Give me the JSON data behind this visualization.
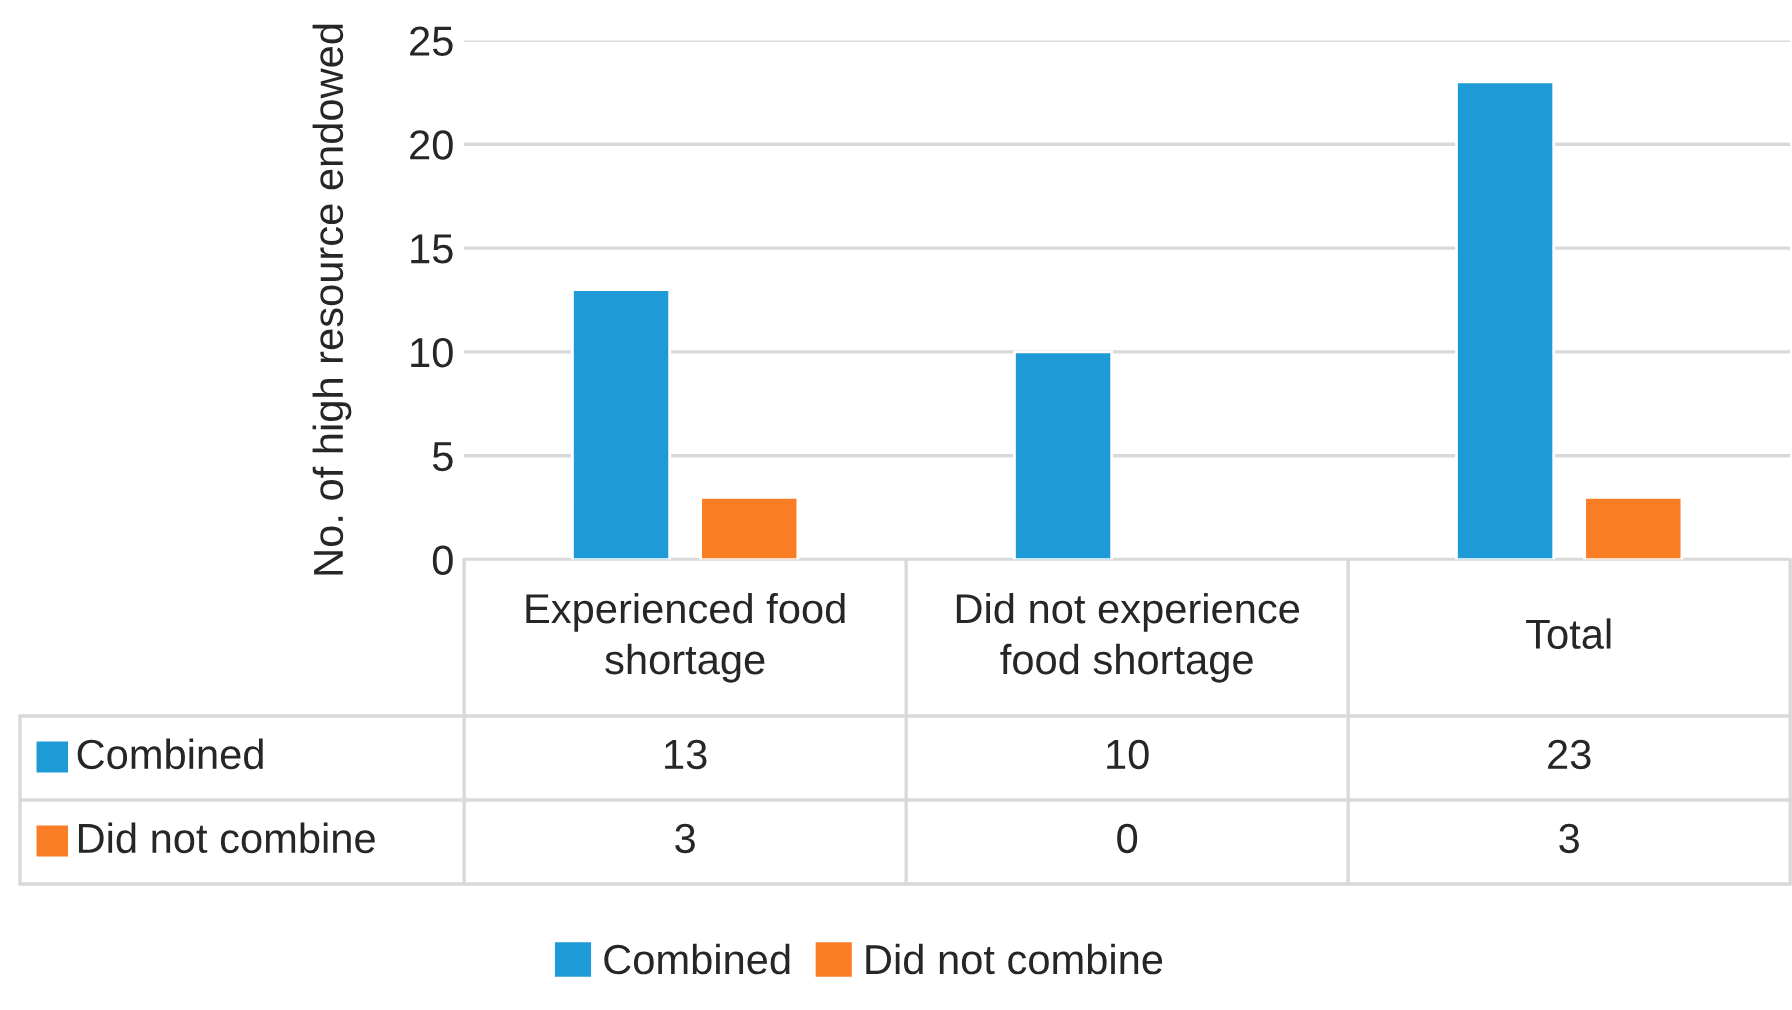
{
  "chart_data": {
    "type": "bar",
    "ylabel": "No. of high resource endowed",
    "categories": [
      "Experienced food\nshortage",
      "Did not experience\nfood shortage",
      "Total"
    ],
    "series": [
      {
        "name": "Combined",
        "color": "#1e9bd7",
        "values": [
          13,
          10,
          23
        ]
      },
      {
        "name": "Did not combine",
        "color": "#f97d24",
        "values": [
          3,
          0,
          3
        ]
      }
    ],
    "ylim": [
      0,
      25
    ],
    "yticks": [
      0,
      5,
      10,
      15,
      20,
      25
    ],
    "grid": "y",
    "legend": "bottom",
    "data_labels": true
  }
}
